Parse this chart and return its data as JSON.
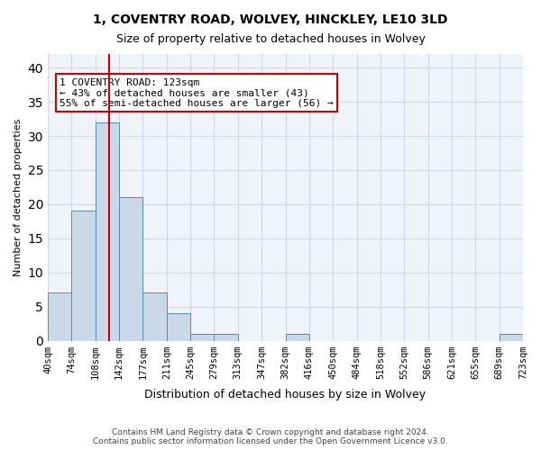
{
  "title": "1, COVENTRY ROAD, WOLVEY, HINCKLEY, LE10 3LD",
  "subtitle": "Size of property relative to detached houses in Wolvey",
  "xlabel": "Distribution of detached houses by size in Wolvey",
  "ylabel": "Number of detached properties",
  "bar_color": "#c9d9e8",
  "bar_edge_color": "#5a8ab0",
  "bins": [
    "40sqm",
    "74sqm",
    "108sqm",
    "142sqm",
    "177sqm",
    "211sqm",
    "245sqm",
    "279sqm",
    "313sqm",
    "347sqm",
    "382sqm",
    "416sqm",
    "450sqm",
    "484sqm",
    "518sqm",
    "552sqm",
    "586sqm",
    "621sqm",
    "655sqm",
    "689sqm",
    "723sqm"
  ],
  "values": [
    7,
    19,
    32,
    21,
    7,
    4,
    1,
    1,
    0,
    0,
    1,
    0,
    0,
    0,
    0,
    0,
    0,
    0,
    0,
    1
  ],
  "ylim": [
    0,
    42
  ],
  "yticks": [
    0,
    5,
    10,
    15,
    20,
    25,
    30,
    35,
    40
  ],
  "vline_pos": 2.57,
  "vline_color": "#cc0000",
  "annotation_text": "1 COVENTRY ROAD: 123sqm\n← 43% of detached houses are smaller (43)\n55% of semi-detached houses are larger (56) →",
  "annotation_box_color": "#ffffff",
  "annotation_box_edge": "#cc0000",
  "footer_text": "Contains HM Land Registry data © Crown copyright and database right 2024.\nContains public sector information licensed under the Open Government Licence v3.0.",
  "grid_color": "#d0d8e8",
  "background_color": "#f0f4f8"
}
